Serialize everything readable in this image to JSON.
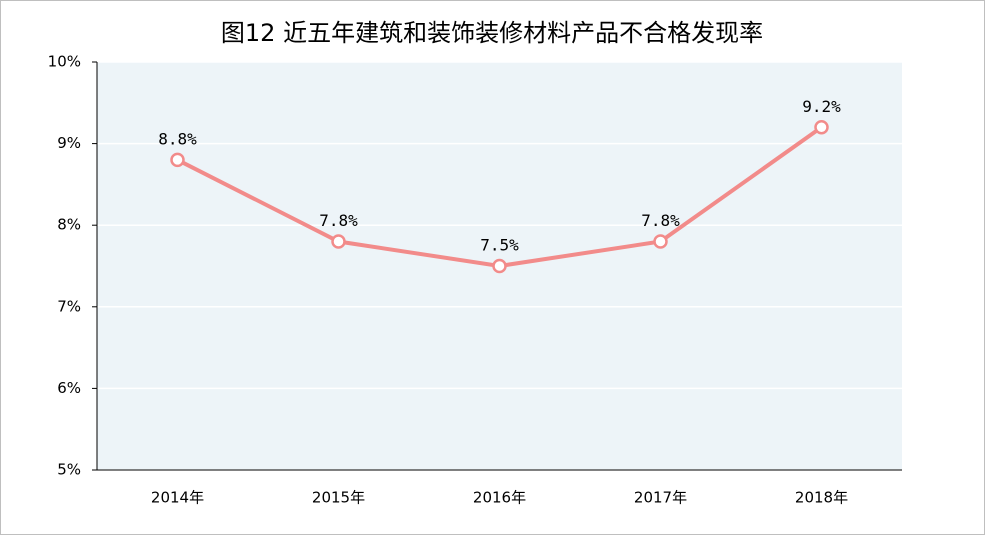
{
  "chart_data": {
    "type": "line",
    "title": "图12 近五年建筑和装饰装修材料产品不合格发现率",
    "categories": [
      "2014年",
      "2015年",
      "2016年",
      "2017年",
      "2018年"
    ],
    "values": [
      8.8,
      7.8,
      7.5,
      7.8,
      9.2
    ],
    "value_labels": [
      "8.8%",
      "7.8%",
      "7.5%",
      "7.8%",
      "9.2%"
    ],
    "color": "#f28b8a",
    "ylim": [
      5,
      10
    ],
    "yticks": [
      {
        "value": 5,
        "label": "5%"
      },
      {
        "value": 6,
        "label": "6%"
      },
      {
        "value": 7,
        "label": "7%"
      },
      {
        "value": 8,
        "label": "8%"
      },
      {
        "value": 9,
        "label": "9%"
      },
      {
        "value": 10,
        "label": "10%"
      }
    ],
    "grid": true
  }
}
